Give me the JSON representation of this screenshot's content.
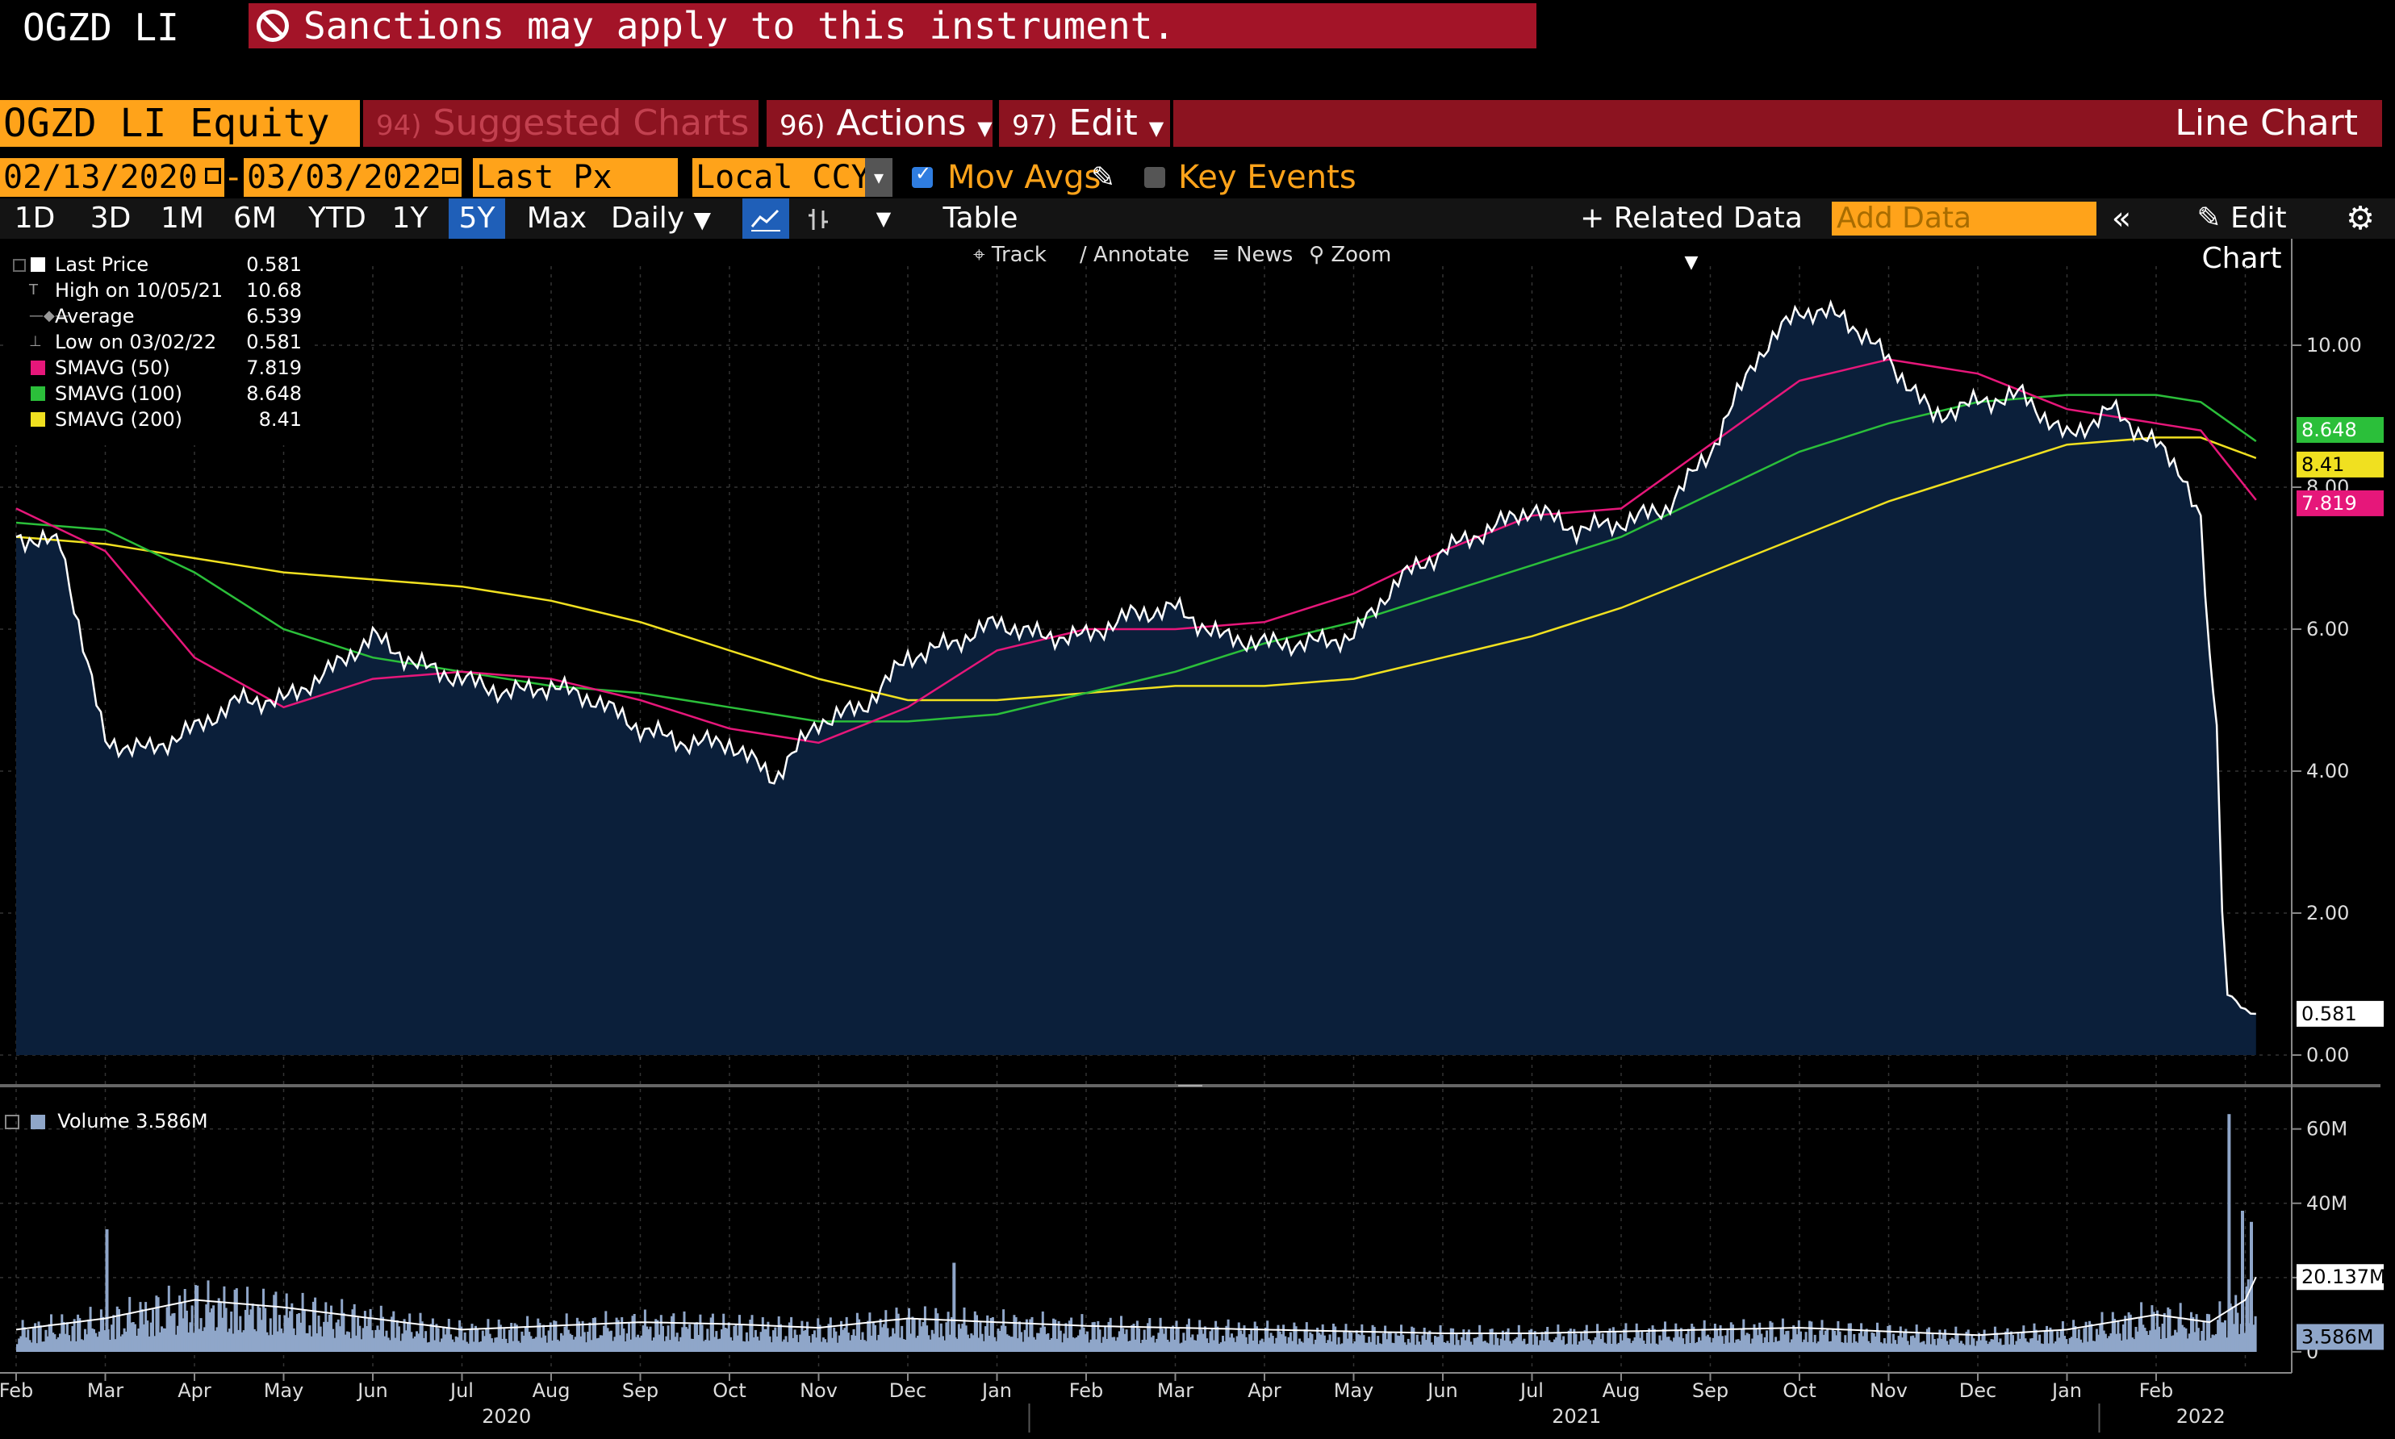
{
  "header": {
    "ticker": "OGZD LI",
    "sanction_text": "Sanctions may apply to this instrument."
  },
  "menubar": {
    "security": "OGZD LI Equity",
    "suggested_num": "94)",
    "suggested_label": "Suggested Charts",
    "actions_num": "96)",
    "actions_label": "Actions",
    "edit_num": "97)",
    "edit_label": "Edit",
    "chart_type": "Line Chart"
  },
  "params": {
    "start_date": "02/13/2020",
    "dash": "-",
    "end_date": "03/03/2022",
    "field": "Last Px",
    "currency": "Local CCY",
    "mov_avgs_label": "Mov Avgs",
    "mov_avgs_checked": true,
    "key_events_label": "Key Events",
    "key_events_checked": false
  },
  "toolbar": {
    "ranges": [
      "1D",
      "3D",
      "1M",
      "6M",
      "YTD",
      "1Y",
      "5Y",
      "Max"
    ],
    "selected_range": "5Y",
    "frequency": "Daily",
    "table_label": "Table",
    "related_data_label": "Related Data",
    "add_data_placeholder": "Add Data",
    "edit_chart_label": "Edit Chart"
  },
  "chart_tools": {
    "track": "Track",
    "annotate": "Annotate",
    "news": "News",
    "zoom": "Zoom"
  },
  "legend": [
    {
      "name": "Last Price",
      "value": "0.581",
      "color": "#ffffff"
    },
    {
      "name": "High on 10/05/21",
      "value": "10.68",
      "color": ""
    },
    {
      "name": "Average",
      "value": "6.539",
      "color": ""
    },
    {
      "name": "Low on 03/02/22",
      "value": "0.581",
      "color": ""
    },
    {
      "name": "SMAVG (50)",
      "value": "7.819",
      "color": "#e6177a"
    },
    {
      "name": "SMAVG (100)",
      "value": "8.648",
      "color": "#2bbf3a"
    },
    {
      "name": "SMAVG (200)",
      "value": "8.41",
      "color": "#f0e020"
    }
  ],
  "volume_legend": "Volume 3.586M",
  "colors": {
    "accent_orange": "#ffa31a",
    "menu_red": "#8c1320",
    "sanction_red": "#a31428",
    "area_fill": "#0b1f3a",
    "volume_bar": "#8fa6c9"
  },
  "chart_data": {
    "type": "line",
    "title": "",
    "price_axis": {
      "ticks": [
        "10.00",
        "8.00",
        "6.00",
        "4.00",
        "2.00",
        "0.00"
      ],
      "ylim": [
        0,
        11.5
      ]
    },
    "volume_axis": {
      "ticks": [
        "60M",
        "40M",
        "20M",
        "0"
      ],
      "ylim": [
        0,
        66000000
      ]
    },
    "x_month_labels": [
      "Feb",
      "Mar",
      "Apr",
      "May",
      "Jun",
      "Jul",
      "Aug",
      "Sep",
      "Oct",
      "Nov",
      "Dec",
      "Jan",
      "Feb",
      "Mar",
      "Apr",
      "May",
      "Jun",
      "Jul",
      "Aug",
      "Sep",
      "Oct",
      "Nov",
      "Dec",
      "Jan",
      "Feb"
    ],
    "x_year_labels": [
      "2020",
      "2021",
      "2022"
    ],
    "price_series": {
      "name": "Last Price",
      "months": [
        0,
        0.5,
        1,
        1.5,
        2,
        2.5,
        3,
        3.5,
        4,
        4.5,
        5,
        5.5,
        6,
        6.5,
        7,
        7.5,
        8,
        8.5,
        9,
        9.5,
        10,
        10.5,
        11,
        11.5,
        12,
        12.5,
        13,
        13.5,
        14,
        14.5,
        15,
        15.5,
        16,
        16.5,
        17,
        17.5,
        18,
        18.5,
        19,
        19.5,
        20,
        20.5,
        21,
        21.5,
        22,
        22.5,
        23,
        23.5,
        24,
        24.3,
        24.5,
        24.6,
        24.68,
        24.74,
        24.8,
        25.0,
        25.12
      ],
      "values": [
        7.3,
        7.2,
        4.4,
        4.3,
        4.6,
        5.0,
        5.0,
        5.4,
        5.9,
        5.5,
        5.3,
        5.1,
        5.2,
        5.0,
        4.6,
        4.4,
        4.4,
        3.9,
        4.7,
        4.9,
        5.6,
        5.8,
        6.1,
        5.9,
        5.9,
        6.2,
        6.3,
        5.9,
        5.8,
        5.8,
        5.9,
        6.7,
        7.1,
        7.4,
        7.7,
        7.4,
        7.5,
        7.7,
        8.5,
        9.8,
        10.5,
        10.4,
        9.8,
        9.0,
        9.2,
        9.3,
        8.7,
        9.1,
        8.6,
        8.2,
        7.5,
        5.5,
        4.8,
        2.0,
        0.9,
        0.62,
        0.581
      ]
    },
    "smavg_50": {
      "name": "SMAVG (50)",
      "months": [
        0,
        1,
        2,
        3,
        4,
        5,
        6,
        7,
        8,
        9,
        10,
        11,
        12,
        13,
        14,
        15,
        16,
        17,
        18,
        19,
        20,
        21,
        22,
        23,
        24,
        24.5,
        25.12
      ],
      "values": [
        7.7,
        7.1,
        5.6,
        4.9,
        5.3,
        5.4,
        5.3,
        5.0,
        4.6,
        4.4,
        4.9,
        5.7,
        6.0,
        6.0,
        6.1,
        6.5,
        7.1,
        7.6,
        7.7,
        8.6,
        9.5,
        9.8,
        9.6,
        9.1,
        8.9,
        8.8,
        7.819
      ]
    },
    "smavg_100": {
      "name": "SMAVG (100)",
      "months": [
        0,
        1,
        2,
        3,
        4,
        5,
        6,
        7,
        8,
        9,
        10,
        11,
        12,
        13,
        14,
        15,
        16,
        17,
        18,
        19,
        20,
        21,
        22,
        23,
        24,
        24.5,
        25.12
      ],
      "values": [
        7.5,
        7.4,
        6.8,
        6.0,
        5.6,
        5.4,
        5.2,
        5.1,
        4.9,
        4.7,
        4.7,
        4.8,
        5.1,
        5.4,
        5.8,
        6.1,
        6.5,
        6.9,
        7.3,
        7.9,
        8.5,
        8.9,
        9.2,
        9.3,
        9.3,
        9.2,
        8.648
      ]
    },
    "smavg_200": {
      "name": "SMAVG (200)",
      "months": [
        0,
        1,
        2,
        3,
        4,
        5,
        6,
        7,
        8,
        9,
        10,
        11,
        12,
        13,
        14,
        15,
        16,
        17,
        18,
        19,
        20,
        21,
        22,
        23,
        24,
        24.5,
        25.12
      ],
      "values": [
        7.3,
        7.2,
        7.0,
        6.8,
        6.7,
        6.6,
        6.4,
        6.1,
        5.7,
        5.3,
        5.0,
        5.0,
        5.1,
        5.2,
        5.2,
        5.3,
        5.6,
        5.9,
        6.3,
        6.8,
        7.3,
        7.8,
        8.2,
        8.6,
        8.7,
        8.7,
        8.41
      ]
    },
    "volume_avg": {
      "months": [
        0,
        1,
        2,
        3,
        4,
        5,
        6,
        7,
        8,
        9,
        10,
        11,
        12,
        13,
        14,
        15,
        16,
        17,
        18,
        19,
        20,
        21,
        22,
        23,
        24,
        24.6,
        25.0,
        25.12
      ],
      "values": [
        6000000,
        9000000,
        14000000,
        12000000,
        9000000,
        6000000,
        7000000,
        8000000,
        7500000,
        6500000,
        9000000,
        8000000,
        7000000,
        6500000,
        6000000,
        5500000,
        5000000,
        5000000,
        5500000,
        6000000,
        6500000,
        5500000,
        4500000,
        6000000,
        10000000,
        8000000,
        14000000,
        20137000
      ]
    },
    "volume_highlights": [
      {
        "month": 1.0,
        "value": 33000000
      },
      {
        "month": 10.5,
        "value": 24000000
      },
      {
        "month": 24.8,
        "value": 64000000
      },
      {
        "month": 24.95,
        "value": 38000000
      },
      {
        "month": 25.05,
        "value": 35000000
      }
    ],
    "last_labels": {
      "price": "0.581",
      "smavg_100": "8.648",
      "smavg_200": "8.41",
      "smavg_50": "7.819",
      "volume_avg": "20.137M",
      "volume": "3.586M"
    }
  }
}
